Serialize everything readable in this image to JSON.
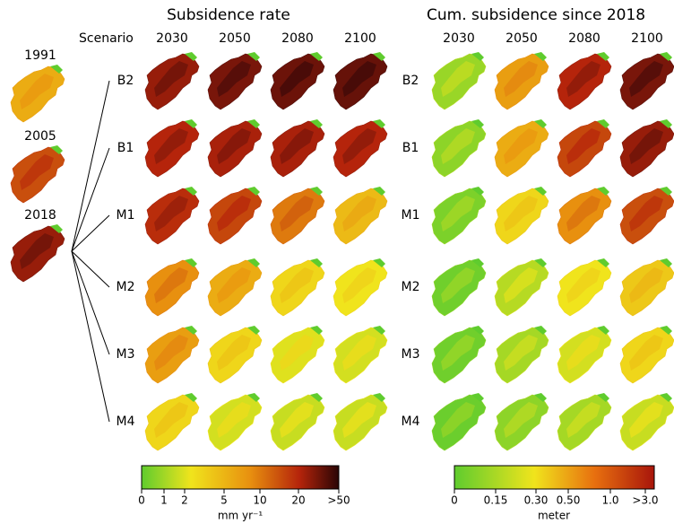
{
  "rate": {
    "title": "Subsidence rate",
    "years": [
      "2030",
      "2050",
      "2080",
      "2100"
    ],
    "colorbar": {
      "ticks": [
        "0",
        "1",
        "2",
        "5",
        "10",
        "20",
        ">50"
      ],
      "unit": "mm yr⁻¹"
    }
  },
  "cumulative": {
    "title": "Cum. subsidence since 2018",
    "years": [
      "2030",
      "2050",
      "2080",
      "2100"
    ],
    "colorbar": {
      "ticks": [
        "0",
        "0.15",
        "0.30",
        "0.50",
        "1.0",
        ">3.0"
      ],
      "unit": "meter"
    }
  },
  "scenario_header": "Scenario",
  "history": [
    "1991",
    "2005",
    "2018"
  ],
  "scenarios": [
    "B2",
    "B1",
    "M1",
    "M2",
    "M3",
    "M4"
  ]
}
